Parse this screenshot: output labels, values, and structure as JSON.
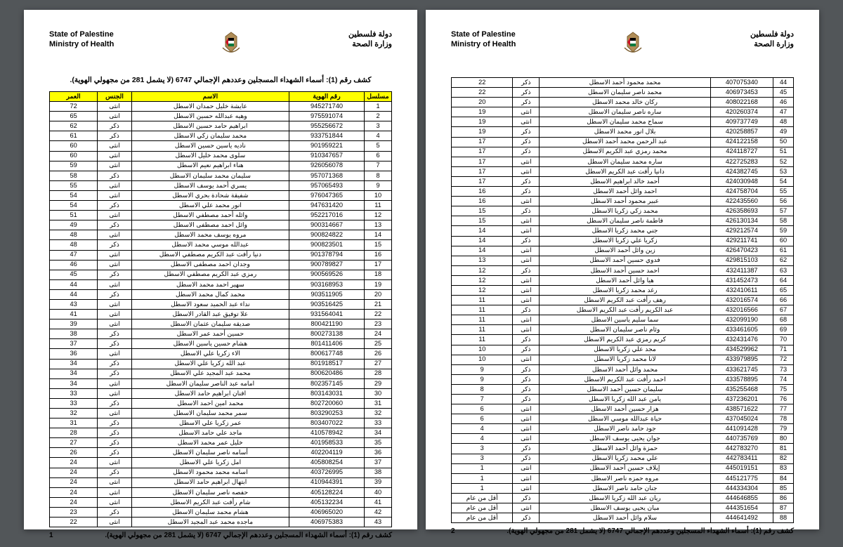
{
  "header": {
    "en_line1": "State of Palestine",
    "en_line2": "Ministry of Health",
    "ar_line1": "دولة فلسطين",
    "ar_line2": "وزارة الصحة"
  },
  "title": "كشف رقم (1): أسماء الشهداء المسجلين وعددهم الإجمالي 6747 (لا يشمل 281 من مجهولي الهوية).",
  "columns": {
    "seq": "مسلسل",
    "id": "رقم الهوية",
    "name": "الاسم",
    "sex": "الجنس",
    "age": "العمر"
  },
  "footer_text": "كشف رقم (1): أسماء الشهداء المسجلين وعددهم الإجمالي 6747 (لا يشمل 281 من مجهولي الهوية).",
  "page1_num": "1",
  "page2_num": "2",
  "page1_rows": [
    {
      "seq": "1",
      "id": "945271740",
      "name": "عايشة خليل حمدان الاسطل",
      "sex": "انثى",
      "age": "72"
    },
    {
      "seq": "2",
      "id": "975591074",
      "name": "وهيه عبدالله حسين الاسطل",
      "sex": "انثى",
      "age": "65"
    },
    {
      "seq": "3",
      "id": "955256672",
      "name": "ابراهيم حامد حسين الاسطل",
      "sex": "ذكر",
      "age": "62"
    },
    {
      "seq": "4",
      "id": "933751844",
      "name": "محمد سليمان زكي الاسطل",
      "sex": "ذكر",
      "age": "61"
    },
    {
      "seq": "5",
      "id": "901959221",
      "name": "ناديه ياسين حسين الاسطل",
      "sex": "انثى",
      "age": "60"
    },
    {
      "seq": "6",
      "id": "910347657",
      "name": "سلوى محمد خليل الاسطل",
      "sex": "انثى",
      "age": "60"
    },
    {
      "seq": "7",
      "id": "926056078",
      "name": "هناء ابراهيم نعيم الاسطل",
      "sex": "انثى",
      "age": "59"
    },
    {
      "seq": "8",
      "id": "957071368",
      "name": "سليمان محمد سليمان الاسطل",
      "sex": "ذكر",
      "age": "58"
    },
    {
      "seq": "9",
      "id": "957065493",
      "name": "يسري أحمد يوسف الاسطل",
      "sex": "انثى",
      "age": "55"
    },
    {
      "seq": "10",
      "id": "976047365",
      "name": "شفيقة شحادة بحري الاسطل",
      "sex": "انثى",
      "age": "54"
    },
    {
      "seq": "11",
      "id": "947631420",
      "name": "انور محمد علي الاسطل",
      "sex": "ذكر",
      "age": "54"
    },
    {
      "seq": "12",
      "id": "952217016",
      "name": "وائله أحمد مصطفي الاسطل",
      "sex": "انثى",
      "age": "51"
    },
    {
      "seq": "13",
      "id": "900314667",
      "name": "وائل احمد مصطفى الاسطل",
      "sex": "ذكر",
      "age": "49"
    },
    {
      "seq": "14",
      "id": "900824822",
      "name": "مروه يوسف محمد الاسطل",
      "sex": "انثى",
      "age": "48"
    },
    {
      "seq": "15",
      "id": "900823501",
      "name": "عبدالله موسي محمد الاسطل",
      "sex": "ذكر",
      "age": "48"
    },
    {
      "seq": "16",
      "id": "901378794",
      "name": "دنيا رأفت عبد الكريم مصطفي الاسطل",
      "sex": "انثى",
      "age": "47"
    },
    {
      "seq": "17",
      "id": "900789827",
      "name": "وجدان احمد مصطفى الاسطل",
      "sex": "انثى",
      "age": "46"
    },
    {
      "seq": "18",
      "id": "900569526",
      "name": "رمزي عبد الكريم مصطفي الاسطل",
      "sex": "ذكر",
      "age": "45"
    },
    {
      "seq": "19",
      "id": "903168953",
      "name": "سهير احمد محمد الاسطل",
      "sex": "انثى",
      "age": "44"
    },
    {
      "seq": "20",
      "id": "903511905",
      "name": "محمد كمال محمد الاسطل",
      "sex": "ذكر",
      "age": "44"
    },
    {
      "seq": "21",
      "id": "903516425",
      "name": "نداء عبد الحميد سعود الاسطل",
      "sex": "انثى",
      "age": "43"
    },
    {
      "seq": "22",
      "id": "931564041",
      "name": "علا توفيق عبد القادر الاسطل",
      "sex": "انثى",
      "age": "41"
    },
    {
      "seq": "23",
      "id": "800421190",
      "name": "صديقه سليمان عثمان الاسطل",
      "sex": "انثى",
      "age": "39"
    },
    {
      "seq": "24",
      "id": "800273138",
      "name": "حسين أحمد عمر الاسطل",
      "sex": "ذكر",
      "age": "38"
    },
    {
      "seq": "25",
      "id": "801411406",
      "name": "هشام حسين ياسين الاسطل",
      "sex": "ذكر",
      "age": "37"
    },
    {
      "seq": "26",
      "id": "800617748",
      "name": "الاء زكريا علي الاسطل",
      "sex": "انثى",
      "age": "36"
    },
    {
      "seq": "27",
      "id": "801918517",
      "name": "عبد الله زكريا علي الاسطل",
      "sex": "ذكر",
      "age": "34"
    },
    {
      "seq": "28",
      "id": "800620486",
      "name": "محمد عبد المجيد علي الاسطل",
      "sex": "ذكر",
      "age": "34"
    },
    {
      "seq": "29",
      "id": "802357145",
      "name": "امامه عبد الناصر سليمان الاسطل",
      "sex": "انثى",
      "age": "34"
    },
    {
      "seq": "30",
      "id": "803143031",
      "name": "افنان ابراهيم حامد الاسطل",
      "sex": "انثى",
      "age": "33"
    },
    {
      "seq": "31",
      "id": "802720060",
      "name": "محمد امين احمد الاسطل",
      "sex": "ذكر",
      "age": "33"
    },
    {
      "seq": "32",
      "id": "803290253",
      "name": "سمر محمد سليمان الاسطل",
      "sex": "انثى",
      "age": "32"
    },
    {
      "seq": "33",
      "id": "803407022",
      "name": "عمر زكريا علي الاسطل",
      "sex": "ذكر",
      "age": "31"
    },
    {
      "seq": "34",
      "id": "410578942",
      "name": "ماجد علي حامد الاسطل",
      "sex": "ذكر",
      "age": "28"
    },
    {
      "seq": "35",
      "id": "401958533",
      "name": "خليل عمر محمد الاسطل",
      "sex": "ذكر",
      "age": "27"
    },
    {
      "seq": "36",
      "id": "402204119",
      "name": "أسامه ناصر سليمان الاسطل",
      "sex": "ذكر",
      "age": "26"
    },
    {
      "seq": "37",
      "id": "405808254",
      "name": "امل زكريا علي الاسطل",
      "sex": "انثى",
      "age": "24"
    },
    {
      "seq": "38",
      "id": "403726995",
      "name": "اسامه محمد محمود الاسطل",
      "sex": "ذكر",
      "age": "24"
    },
    {
      "seq": "39",
      "id": "410944391",
      "name": "ابتهال ابراهيم حامد الاسطل",
      "sex": "انثى",
      "age": "24"
    },
    {
      "seq": "40",
      "id": "405128224",
      "name": "حفصه ناصر سليمان الاسطل",
      "sex": "انثى",
      "age": "24"
    },
    {
      "seq": "41",
      "id": "405132234",
      "name": "شام رأفت عبد الكريم الاسطل",
      "sex": "انثى",
      "age": "24"
    },
    {
      "seq": "42",
      "id": "406965020",
      "name": "هشام محمد سليمان الاسطل",
      "sex": "ذكر",
      "age": "23"
    },
    {
      "seq": "43",
      "id": "406975383",
      "name": "ماجده محمد عبد المجيد الاسطل",
      "sex": "انثى",
      "age": "22"
    }
  ],
  "page2_rows": [
    {
      "seq": "44",
      "id": "407075340",
      "name": "محمد محمود أحمد الاسطل",
      "sex": "ذكر",
      "age": "22"
    },
    {
      "seq": "45",
      "id": "406973453",
      "name": "محمد ناصر سليمان الاسطل",
      "sex": "ذكر",
      "age": "22"
    },
    {
      "seq": "46",
      "id": "408022168",
      "name": "ركان خالد محمد الاسطل",
      "sex": "ذكر",
      "age": "20"
    },
    {
      "seq": "47",
      "id": "420260374",
      "name": "ساره ناصر سليمان الاسطل",
      "sex": "انثى",
      "age": "19"
    },
    {
      "seq": "48",
      "id": "409737749",
      "name": "سماح محمد سليمان الاسطل",
      "sex": "انثى",
      "age": "19"
    },
    {
      "seq": "49",
      "id": "420258857",
      "name": "بلال انور محمد الاسطل",
      "sex": "ذكر",
      "age": "19"
    },
    {
      "seq": "50",
      "id": "424122158",
      "name": "عبد الرحمن محمد أحمد الاسطل",
      "sex": "ذكر",
      "age": "17"
    },
    {
      "seq": "51",
      "id": "424118727",
      "name": "محمد رمزي عبد الكريم الاسطل",
      "sex": "ذكر",
      "age": "17"
    },
    {
      "seq": "52",
      "id": "422725283",
      "name": "ساره محمد سليمان الاسطل",
      "sex": "انثى",
      "age": "17"
    },
    {
      "seq": "53",
      "id": "424382745",
      "name": "دانيا رأفت عبد الكريم الاسطل",
      "sex": "انثى",
      "age": "17"
    },
    {
      "seq": "54",
      "id": "424030948",
      "name": "أحمد خالد ابراهيم الاسطل",
      "sex": "ذكر",
      "age": "17"
    },
    {
      "seq": "55",
      "id": "424758704",
      "name": "احمد وائل أحمد الاسطل",
      "sex": "ذكر",
      "age": "16"
    },
    {
      "seq": "56",
      "id": "422435560",
      "name": "عبير محمود أحمد الاسطل",
      "sex": "انثى",
      "age": "16"
    },
    {
      "seq": "57",
      "id": "426358693",
      "name": "محمد زكي زكريا الاسطل",
      "sex": "ذكر",
      "age": "15"
    },
    {
      "seq": "58",
      "id": "426130134",
      "name": "فاطمة ناصر سليمان الاسطل",
      "sex": "انثى",
      "age": "15"
    },
    {
      "seq": "59",
      "id": "429212574",
      "name": "جني محمد زكريا الاسطل",
      "sex": "انثى",
      "age": "14"
    },
    {
      "seq": "60",
      "id": "429211741",
      "name": "زكريا علي زكريا الاسطل",
      "sex": "ذكر",
      "age": "14"
    },
    {
      "seq": "61",
      "id": "426470423",
      "name": "زين وائل أحمد الاسطل",
      "sex": "انثى",
      "age": "14"
    },
    {
      "seq": "62",
      "id": "429815103",
      "name": "فدوي حسين أحمد الاسطل",
      "sex": "انثى",
      "age": "13"
    },
    {
      "seq": "63",
      "id": "432411387",
      "name": "احمد حسين أحمد الاسطل",
      "sex": "ذكر",
      "age": "12"
    },
    {
      "seq": "64",
      "id": "431452473",
      "name": "هيا وائل أحمد الاسطل",
      "sex": "انثى",
      "age": "12"
    },
    {
      "seq": "65",
      "id": "432410611",
      "name": "رغد محمد زكريا الاسطل",
      "sex": "انثى",
      "age": "12"
    },
    {
      "seq": "66",
      "id": "432016574",
      "name": "رهف رأفت عبد الكريم الاسطل",
      "sex": "انثى",
      "age": "11"
    },
    {
      "seq": "67",
      "id": "432016566",
      "name": "عبد الكريم رأفت عبد الكريم الاسطل",
      "sex": "ذكر",
      "age": "11"
    },
    {
      "seq": "68",
      "id": "432099190",
      "name": "سما سليم ياسين الاسطل",
      "sex": "انثى",
      "age": "11"
    },
    {
      "seq": "69",
      "id": "433461605",
      "name": "وئام ناصر سليمان الاسطل",
      "sex": "انثى",
      "age": "11"
    },
    {
      "seq": "70",
      "id": "432431476",
      "name": "كريم رمزي عبد الكريم الاسطل",
      "sex": "ذكر",
      "age": "11"
    },
    {
      "seq": "71",
      "id": "434529962",
      "name": "مجد علي زكريا الاسطل",
      "sex": "ذكر",
      "age": "10"
    },
    {
      "seq": "72",
      "id": "433979895",
      "name": "لانا محمد زكريا الاسطل",
      "sex": "انثى",
      "age": "10"
    },
    {
      "seq": "73",
      "id": "433621745",
      "name": "محمد وائل أحمد الاسطل",
      "sex": "ذكر",
      "age": "9"
    },
    {
      "seq": "74",
      "id": "433578895",
      "name": "احمد رأفت عبد الكريم الاسطل",
      "sex": "ذكر",
      "age": "9"
    },
    {
      "seq": "75",
      "id": "435255468",
      "name": "سليمان حسين أحمد الاسطل",
      "sex": "ذكر",
      "age": "8"
    },
    {
      "seq": "76",
      "id": "437236201",
      "name": "يامن عبد الله زكريا الاسطل",
      "sex": "ذكر",
      "age": "7"
    },
    {
      "seq": "77",
      "id": "438571622",
      "name": "هزار حسين أحمد الاسطل",
      "sex": "انثى",
      "age": "6"
    },
    {
      "seq": "78",
      "id": "437045024",
      "name": "حياة عبدالله موسي الاسطل",
      "sex": "انثى",
      "age": "6"
    },
    {
      "seq": "79",
      "id": "441091428",
      "name": "جود حامد ناصر الاسطل",
      "sex": "انثى",
      "age": "4"
    },
    {
      "seq": "80",
      "id": "440735769",
      "name": "جوان يحيى يوسف الاسطل",
      "sex": "انثى",
      "age": "4"
    },
    {
      "seq": "81",
      "id": "442783270",
      "name": "حمزة وائل أحمد الاسطل",
      "sex": "ذكر",
      "age": "3"
    },
    {
      "seq": "82",
      "id": "442783411",
      "name": "علي محمد زكريا الاسطل",
      "sex": "ذكر",
      "age": "3"
    },
    {
      "seq": "83",
      "id": "445019151",
      "name": "إيلاف حسين أحمد الاسطل",
      "sex": "انثى",
      "age": "1"
    },
    {
      "seq": "84",
      "id": "445121775",
      "name": "مروه حمزه ناصر الاسطل",
      "sex": "انثى",
      "age": "1"
    },
    {
      "seq": "85",
      "id": "444334304",
      "name": "جنان حامد ناصر الاسطل",
      "sex": "انثى",
      "age": "1"
    },
    {
      "seq": "86",
      "id": "444646855",
      "name": "ريان عبد الله زكريا الاسطل",
      "sex": "ذكر",
      "age": "أقل من عام"
    },
    {
      "seq": "87",
      "id": "444351654",
      "name": "ميان يحيى يوسف الاسطل",
      "sex": "انثى",
      "age": "أقل من عام"
    },
    {
      "seq": "88",
      "id": "444641492",
      "name": "سلام وائل أحمد الاسطل",
      "sex": "ذكر",
      "age": "أقل من عام"
    }
  ]
}
